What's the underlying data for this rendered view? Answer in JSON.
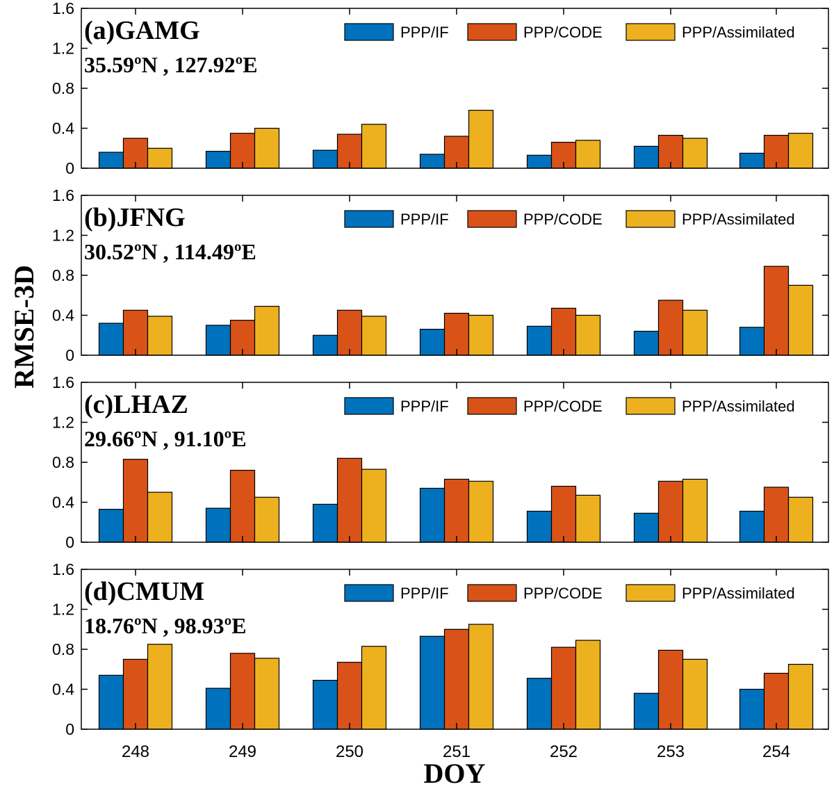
{
  "chart_data": {
    "type": "bar",
    "xlabel": "DOY",
    "ylabel": "RMSE-3D",
    "categories": [
      "248",
      "249",
      "250",
      "251",
      "252",
      "253",
      "254"
    ],
    "ylim": [
      0,
      1.6
    ],
    "yticks": [
      "0",
      "0.4",
      "0.8",
      "1.2",
      "1.6"
    ],
    "legend_position": "top-right",
    "series_names": [
      "PPP/IF",
      "PPP/CODE",
      "PPP/Assimilated"
    ],
    "colors": {
      "PPP/IF": "#0072BD",
      "PPP/CODE": "#D95319",
      "PPP/Assimilated": "#EDB120"
    },
    "panels": [
      {
        "label": "(a)",
        "station": "GAMG",
        "coord": "35.59ºN , 127.92ºE",
        "series": [
          {
            "name": "PPP/IF",
            "values": [
              0.16,
              0.17,
              0.18,
              0.14,
              0.13,
              0.22,
              0.15
            ]
          },
          {
            "name": "PPP/CODE",
            "values": [
              0.3,
              0.35,
              0.34,
              0.32,
              0.26,
              0.33,
              0.33
            ]
          },
          {
            "name": "PPP/Assimilated",
            "values": [
              0.2,
              0.4,
              0.44,
              0.58,
              0.28,
              0.3,
              0.35
            ]
          }
        ]
      },
      {
        "label": "(b)",
        "station": "JFNG",
        "coord": "30.52ºN , 114.49ºE",
        "series": [
          {
            "name": "PPP/IF",
            "values": [
              0.32,
              0.3,
              0.2,
              0.26,
              0.29,
              0.24,
              0.28
            ]
          },
          {
            "name": "PPP/CODE",
            "values": [
              0.45,
              0.35,
              0.45,
              0.42,
              0.47,
              0.55,
              0.89
            ]
          },
          {
            "name": "PPP/Assimilated",
            "values": [
              0.39,
              0.49,
              0.39,
              0.4,
              0.4,
              0.45,
              0.7
            ]
          }
        ]
      },
      {
        "label": "(c)",
        "station": "LHAZ",
        "coord": "29.66ºN , 91.10ºE",
        "series": [
          {
            "name": "PPP/IF",
            "values": [
              0.33,
              0.34,
              0.38,
              0.54,
              0.31,
              0.29,
              0.31
            ]
          },
          {
            "name": "PPP/CODE",
            "values": [
              0.83,
              0.72,
              0.84,
              0.63,
              0.56,
              0.61,
              0.55
            ]
          },
          {
            "name": "PPP/Assimilated",
            "values": [
              0.5,
              0.45,
              0.73,
              0.61,
              0.47,
              0.63,
              0.45
            ]
          }
        ]
      },
      {
        "label": "(d)",
        "station": "CMUM",
        "coord": "18.76ºN , 98.93ºE",
        "series": [
          {
            "name": "PPP/IF",
            "values": [
              0.54,
              0.41,
              0.49,
              0.93,
              0.51,
              0.36,
              0.4
            ]
          },
          {
            "name": "PPP/CODE",
            "values": [
              0.7,
              0.76,
              0.67,
              1.0,
              0.82,
              0.79,
              0.56
            ]
          },
          {
            "name": "PPP/Assimilated",
            "values": [
              0.85,
              0.71,
              0.83,
              1.05,
              0.89,
              0.7,
              0.65
            ]
          }
        ]
      }
    ]
  }
}
